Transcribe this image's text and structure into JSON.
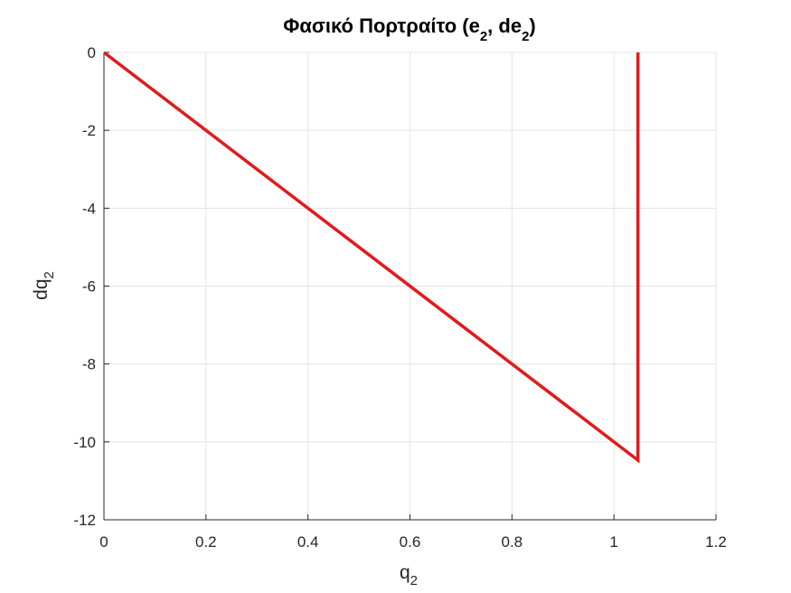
{
  "chart_data": {
    "type": "line",
    "title": {
      "main": "Φασικό Πορτραίτο (e",
      "sub1": "2",
      "mid": ", de",
      "sub2": "2",
      "end": ")"
    },
    "xlabel": {
      "main": "q",
      "sub": "2"
    },
    "ylabel": {
      "main": "dq",
      "sub": "2"
    },
    "xlim": [
      0,
      1.2
    ],
    "ylim": [
      -12,
      0
    ],
    "xticks": [
      0,
      0.2,
      0.4,
      0.6,
      0.8,
      1,
      1.2
    ],
    "xtick_labels": [
      "0",
      "0.2",
      "0.4",
      "0.6",
      "0.8",
      "1",
      "1.2"
    ],
    "yticks": [
      0,
      -2,
      -4,
      -6,
      -8,
      -10,
      -12
    ],
    "ytick_labels": [
      "0",
      "-2",
      "-4",
      "-6",
      "-8",
      "-10",
      "-12"
    ],
    "grid": true,
    "series": [
      {
        "color": "#e31a1c",
        "x": [
          0,
          1.047,
          1.047
        ],
        "y": [
          0,
          -10.47,
          0
        ]
      }
    ]
  }
}
